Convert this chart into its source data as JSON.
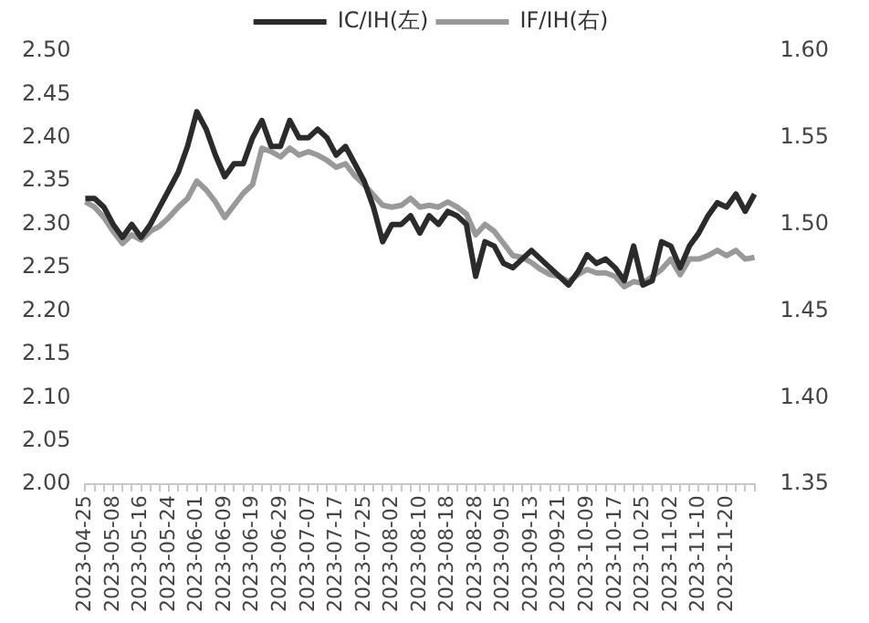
{
  "chart_data": {
    "type": "line",
    "categories": [
      "2023-04-25",
      null,
      null,
      "2023-05-08",
      null,
      null,
      "2023-05-16",
      null,
      null,
      "2023-05-24",
      null,
      null,
      "2023-06-01",
      null,
      null,
      "2023-06-09",
      null,
      null,
      "2023-06-19",
      null,
      null,
      "2023-06-29",
      null,
      null,
      "2023-07-07",
      null,
      null,
      "2023-07-17",
      null,
      null,
      "2023-07-25",
      null,
      null,
      "2023-08-02",
      null,
      null,
      "2023-08-10",
      null,
      null,
      "2023-08-18",
      null,
      null,
      "2023-08-28",
      null,
      null,
      "2023-09-05",
      null,
      null,
      "2023-09-13",
      null,
      null,
      "2023-09-21",
      null,
      null,
      "2023-10-09",
      null,
      null,
      "2023-10-17",
      null,
      null,
      "2023-10-25",
      null,
      null,
      "2023-11-02",
      null,
      null,
      "2023-11-10",
      null,
      null,
      "2023-11-20",
      null,
      null,
      null
    ],
    "series": [
      {
        "name": "IC/IH(左)",
        "color": "#2b2b2b",
        "values": [
          2.33,
          2.33,
          2.32,
          2.3,
          2.285,
          2.3,
          2.285,
          2.3,
          2.32,
          2.34,
          2.36,
          2.39,
          2.43,
          2.41,
          2.38,
          2.355,
          2.37,
          2.37,
          2.4,
          2.42,
          2.39,
          2.39,
          2.42,
          2.4,
          2.4,
          2.41,
          2.4,
          2.38,
          2.39,
          2.37,
          2.35,
          2.32,
          2.28,
          2.3,
          2.3,
          2.31,
          2.29,
          2.31,
          2.3,
          2.315,
          2.31,
          2.3,
          2.24,
          2.28,
          2.275,
          2.255,
          2.25,
          2.26,
          2.27,
          2.26,
          2.25,
          2.24,
          2.23,
          2.245,
          2.265,
          2.255,
          2.26,
          2.25,
          2.235,
          2.275,
          2.23,
          2.235,
          2.28,
          2.275,
          2.25,
          2.275,
          2.29,
          2.31,
          2.325,
          2.32,
          2.335,
          2.315,
          2.335
        ]
      },
      {
        "name": "IF/IH(右)",
        "color": "#999999",
        "axis": "y2",
        "values": [
          1.513,
          1.51,
          1.504,
          1.496,
          1.489,
          1.494,
          1.491,
          1.496,
          1.499,
          1.504,
          1.51,
          1.515,
          1.525,
          1.52,
          1.513,
          1.504,
          1.511,
          1.518,
          1.523,
          1.544,
          1.542,
          1.539,
          1.544,
          1.54,
          1.542,
          1.54,
          1.537,
          1.533,
          1.535,
          1.528,
          1.523,
          1.517,
          1.511,
          1.51,
          1.511,
          1.515,
          1.51,
          1.511,
          1.51,
          1.513,
          1.51,
          1.506,
          1.494,
          1.5,
          1.496,
          1.489,
          1.482,
          1.481,
          1.478,
          1.474,
          1.471,
          1.47,
          1.467,
          1.471,
          1.474,
          1.472,
          1.472,
          1.47,
          1.464,
          1.467,
          1.466,
          1.47,
          1.474,
          1.48,
          1.471,
          1.48,
          1.48,
          1.482,
          1.485,
          1.482,
          1.485,
          1.48,
          1.481
        ]
      }
    ],
    "ylim": [
      2.0,
      2.5
    ],
    "yticks": [
      {
        "value": 2.0,
        "label": "2.00"
      },
      {
        "value": 2.05,
        "label": "2.05"
      },
      {
        "value": 2.1,
        "label": "2.10"
      },
      {
        "value": 2.15,
        "label": "2.15"
      },
      {
        "value": 2.2,
        "label": "2.20"
      },
      {
        "value": 2.25,
        "label": "2.25"
      },
      {
        "value": 2.3,
        "label": "2.30"
      },
      {
        "value": 2.35,
        "label": "2.35"
      },
      {
        "value": 2.4,
        "label": "2.40"
      },
      {
        "value": 2.45,
        "label": "2.45"
      },
      {
        "value": 2.5,
        "label": "2.50"
      }
    ],
    "y2lim": [
      1.35,
      1.6
    ],
    "y2ticks": [
      {
        "value": 1.35,
        "label": "1.35"
      },
      {
        "value": 1.4,
        "label": "1.40"
      },
      {
        "value": 1.45,
        "label": "1.45"
      },
      {
        "value": 1.5,
        "label": "1.50"
      },
      {
        "value": 1.55,
        "label": "1.55"
      },
      {
        "value": 1.6,
        "label": "1.60"
      }
    ],
    "grid": false,
    "legend": "top",
    "marker": "none",
    "line_style": "solid"
  }
}
